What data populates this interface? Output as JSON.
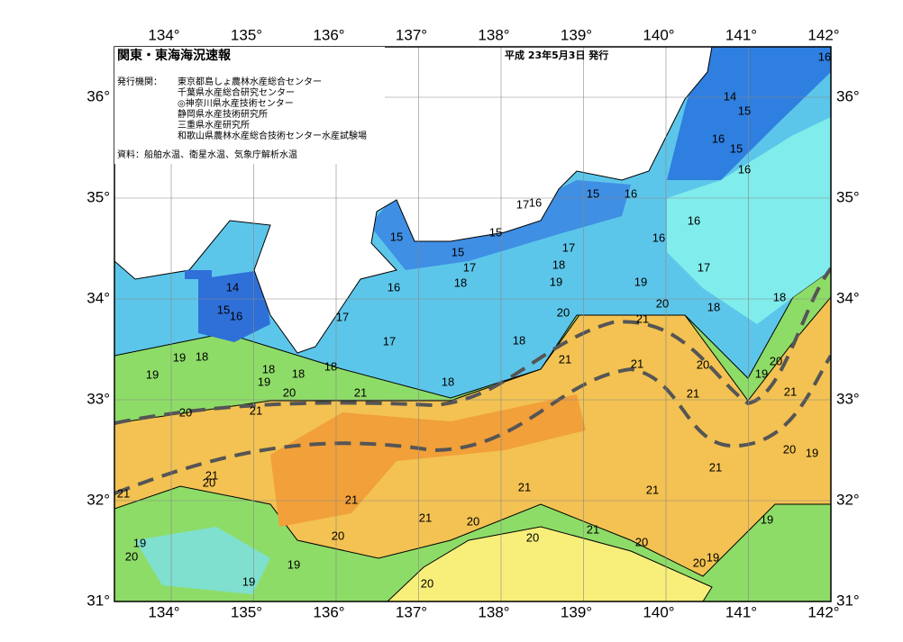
{
  "header": {
    "title": "関東・東海海況速報",
    "date": "平成 23年5月3日 発行",
    "issuer_label": "発行機関：",
    "issuers": [
      "東京都島しょ農林水産総合センター",
      "千葉県水産総合研究センター",
      "◎神奈川県水産技術センター",
      "静岡県水産技術研究所",
      "三重県水産研究所",
      "和歌山県農林水産総合技術センター水産試験場"
    ],
    "source": "資料：船舶水温、衛星水温、気象庁解析水温"
  },
  "map": {
    "lon_ticks": [
      {
        "value": 134,
        "label": "134°"
      },
      {
        "value": 135,
        "label": "135°"
      },
      {
        "value": 136,
        "label": "136°"
      },
      {
        "value": 137,
        "label": "137°"
      },
      {
        "value": 138,
        "label": "138°"
      },
      {
        "value": 139,
        "label": "139°"
      },
      {
        "value": 140,
        "label": "140°"
      },
      {
        "value": 141,
        "label": "141°"
      },
      {
        "value": 142,
        "label": "142°"
      }
    ],
    "lat_ticks": [
      {
        "value": 36,
        "label": "36°"
      },
      {
        "value": 35,
        "label": "35°"
      },
      {
        "value": 34,
        "label": "34°"
      },
      {
        "value": 33,
        "label": "33°"
      },
      {
        "value": 32,
        "label": "32°"
      },
      {
        "value": 31,
        "label": "31°"
      }
    ],
    "contour_labels": [
      "16",
      "14",
      "15",
      "16",
      "15",
      "16",
      "15",
      "16",
      "17",
      "16",
      "16",
      "15",
      "15",
      "16",
      "15",
      "17",
      "17",
      "17",
      "18",
      "18",
      "19",
      "19",
      "14",
      "16",
      "20",
      "18",
      "18",
      "15",
      "16",
      "20",
      "21",
      "17",
      "17",
      "18",
      "19",
      "18",
      "21",
      "20",
      "20",
      "18",
      "18",
      "18",
      "19",
      "19",
      "21",
      "19",
      "18",
      "20",
      "21",
      "21",
      "21",
      "20",
      "21",
      "20",
      "19",
      "21",
      "21",
      "20",
      "21",
      "21",
      "21",
      "21",
      "19",
      "21",
      "20",
      "20",
      "21",
      "20",
      "19",
      "20",
      "20",
      "19",
      "20",
      "19",
      "19",
      "20"
    ]
  }
}
